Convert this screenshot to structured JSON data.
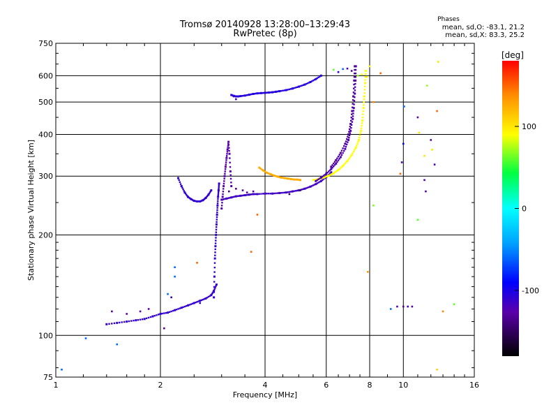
{
  "chart_data": {
    "type": "scatter",
    "title": "Tromsø 20140928 13:28:00–13:29:43",
    "subtitle": "RwPretec (8p)",
    "xlabel": "Frequency [MHz]",
    "ylabel": "Stationary phase Virtual Height [km]",
    "xscale": "log",
    "yscale": "log",
    "xlim": [
      1,
      16
    ],
    "ylim": [
      75,
      750
    ],
    "xticks": [
      1,
      2,
      4,
      6,
      8,
      10,
      16
    ],
    "xtick_labels": [
      "1",
      "2",
      "4",
      "6",
      "8",
      "10",
      "16"
    ],
    "yticks": [
      75,
      100,
      200,
      300,
      400,
      500,
      600,
      750
    ],
    "ytick_labels": [
      "75",
      "100",
      "200",
      "300",
      "400",
      "500",
      "600",
      "750"
    ],
    "grid": true,
    "stats": {
      "heading": "Phases",
      "line_o": "mean, sd,O: -83.1, 21.2",
      "line_x": "mean, sd,X:  83.3, 25.2"
    },
    "colorbar": {
      "label": "[deg]",
      "range": [
        -180,
        180
      ],
      "ticks": [
        100,
        0,
        -100
      ],
      "tick_labels": [
        "100",
        "0",
        "-100"
      ],
      "position": "right"
    },
    "traces": [
      {
        "phase": -110,
        "x": [
          1.4,
          1.5,
          1.6,
          1.7,
          1.8,
          1.9,
          2.0,
          2.1,
          2.2,
          2.3,
          2.4,
          2.5,
          2.6,
          2.7,
          2.8,
          2.85,
          2.9
        ],
        "y": [
          108,
          109,
          110,
          111,
          112,
          114,
          116,
          117,
          119,
          121,
          123,
          125,
          127,
          129,
          132,
          136,
          142
        ]
      },
      {
        "phase": -110,
        "x": [
          2.85,
          2.86,
          2.87,
          2.88,
          2.89,
          2.9,
          2.91,
          2.92,
          2.93,
          2.94,
          2.95
        ],
        "y": [
          130,
          150,
          170,
          185,
          200,
          215,
          230,
          245,
          260,
          272,
          285
        ]
      },
      {
        "phase": -110,
        "x": [
          2.25,
          2.3,
          2.35,
          2.4,
          2.45,
          2.5,
          2.55,
          2.6,
          2.65,
          2.7,
          2.75,
          2.8
        ],
        "y": [
          296,
          280,
          268,
          260,
          256,
          253,
          252,
          252,
          254,
          258,
          264,
          272
        ]
      },
      {
        "phase": -115,
        "x": [
          3.0,
          3.1,
          3.2,
          3.3,
          3.4,
          3.5,
          3.6,
          3.7,
          3.8,
          4.0,
          4.2,
          4.4,
          4.6,
          4.8,
          5.0,
          5.2,
          5.4,
          5.6,
          5.8,
          6.0,
          6.2
        ],
        "y": [
          255,
          257,
          259,
          261,
          262,
          263,
          264,
          265,
          265,
          266,
          266,
          267,
          268,
          270,
          272,
          275,
          279,
          284,
          290,
          298,
          308
        ]
      },
      {
        "phase": -125,
        "x": [
          3.0,
          3.02,
          3.04,
          3.06,
          3.08,
          3.1,
          3.12,
          3.14,
          3.16,
          3.18,
          3.2
        ],
        "y": [
          240,
          260,
          280,
          300,
          320,
          340,
          360,
          380,
          350,
          310,
          280
        ]
      },
      {
        "phase": -105,
        "x": [
          3.2,
          3.25,
          3.3,
          3.35,
          3.4,
          3.5,
          3.6,
          3.7,
          3.8,
          3.9,
          4.0,
          4.1,
          4.2,
          4.3,
          4.4,
          4.6,
          4.8,
          5.0,
          5.2,
          5.4,
          5.6,
          5.8
        ],
        "y": [
          525,
          522,
          520,
          520,
          521,
          523,
          526,
          529,
          531,
          532,
          533,
          534,
          535,
          537,
          539,
          543,
          549,
          556,
          564,
          574,
          586,
          600
        ]
      },
      {
        "phase": 125,
        "x": [
          3.85,
          3.95,
          4.05,
          4.15,
          4.25,
          4.35,
          4.45,
          4.55,
          4.65,
          4.75,
          4.85,
          4.95,
          5.05
        ],
        "y": [
          318,
          312,
          307,
          304,
          301,
          299,
          297,
          296,
          295,
          294,
          293,
          293,
          292
        ]
      },
      {
        "phase": 90,
        "x": [
          5.5,
          5.7,
          5.9,
          6.1,
          6.3,
          6.5,
          6.7,
          6.9,
          7.1,
          7.3,
          7.45,
          7.55,
          7.62,
          7.68,
          7.72,
          7.76,
          7.8
        ],
        "y": [
          292,
          294,
          297,
          301,
          306,
          313,
          322,
          333,
          347,
          365,
          385,
          410,
          440,
          480,
          520,
          570,
          620
        ]
      },
      {
        "phase": -120,
        "x": [
          5.6,
          5.8,
          6.0,
          6.2,
          6.4,
          6.6,
          6.8,
          6.95,
          7.05,
          7.15,
          7.2,
          7.25,
          7.28,
          7.3
        ],
        "y": [
          290,
          297,
          305,
          315,
          327,
          342,
          362,
          385,
          410,
          445,
          480,
          530,
          580,
          640
        ]
      },
      {
        "phase": -132,
        "x": [
          6.2,
          6.4,
          6.6,
          6.8,
          6.95,
          7.05,
          7.12,
          7.18,
          7.22,
          7.25
        ],
        "y": [
          320,
          335,
          352,
          375,
          400,
          430,
          470,
          520,
          580,
          640
        ]
      }
    ],
    "points": [
      {
        "x": 1.04,
        "y": 79,
        "phase": -60
      },
      {
        "x": 1.22,
        "y": 98,
        "phase": -60
      },
      {
        "x": 1.5,
        "y": 94,
        "phase": -60
      },
      {
        "x": 1.45,
        "y": 118,
        "phase": -130
      },
      {
        "x": 1.6,
        "y": 116,
        "phase": -125
      },
      {
        "x": 1.75,
        "y": 118,
        "phase": -125
      },
      {
        "x": 1.85,
        "y": 120,
        "phase": -125
      },
      {
        "x": 2.05,
        "y": 105,
        "phase": -130
      },
      {
        "x": 2.1,
        "y": 133,
        "phase": -60
      },
      {
        "x": 2.15,
        "y": 130,
        "phase": -110
      },
      {
        "x": 2.2,
        "y": 160,
        "phase": -60
      },
      {
        "x": 2.2,
        "y": 150,
        "phase": -60
      },
      {
        "x": 2.6,
        "y": 125,
        "phase": -110
      },
      {
        "x": 2.55,
        "y": 165,
        "phase": 150
      },
      {
        "x": 3.15,
        "y": 270,
        "phase": -135
      },
      {
        "x": 3.3,
        "y": 275,
        "phase": -130
      },
      {
        "x": 3.45,
        "y": 272,
        "phase": -130
      },
      {
        "x": 3.55,
        "y": 268,
        "phase": -125
      },
      {
        "x": 3.7,
        "y": 270,
        "phase": -125
      },
      {
        "x": 3.25,
        "y": 520,
        "phase": -115
      },
      {
        "x": 3.3,
        "y": 510,
        "phase": -115
      },
      {
        "x": 3.8,
        "y": 230,
        "phase": 150
      },
      {
        "x": 3.65,
        "y": 178,
        "phase": 150
      },
      {
        "x": 5.05,
        "y": 272,
        "phase": -150
      },
      {
        "x": 4.7,
        "y": 265,
        "phase": -150
      },
      {
        "x": 6.3,
        "y": 625,
        "phase": 60
      },
      {
        "x": 6.5,
        "y": 615,
        "phase": -100
      },
      {
        "x": 6.7,
        "y": 628,
        "phase": -60
      },
      {
        "x": 6.9,
        "y": 630,
        "phase": -120
      },
      {
        "x": 7.1,
        "y": 620,
        "phase": -130
      },
      {
        "x": 7.4,
        "y": 600,
        "phase": 70
      },
      {
        "x": 7.6,
        "y": 605,
        "phase": 90
      },
      {
        "x": 7.85,
        "y": 595,
        "phase": 95
      },
      {
        "x": 8.0,
        "y": 640,
        "phase": 90
      },
      {
        "x": 8.2,
        "y": 500,
        "phase": 140
      },
      {
        "x": 8.6,
        "y": 610,
        "phase": 150
      },
      {
        "x": 7.9,
        "y": 155,
        "phase": 135
      },
      {
        "x": 8.2,
        "y": 245,
        "phase": 65
      },
      {
        "x": 9.2,
        "y": 120,
        "phase": -60
      },
      {
        "x": 9.6,
        "y": 122,
        "phase": -120
      },
      {
        "x": 10.0,
        "y": 122,
        "phase": -130
      },
      {
        "x": 10.3,
        "y": 122,
        "phase": -120
      },
      {
        "x": 10.6,
        "y": 122,
        "phase": -130
      },
      {
        "x": 9.8,
        "y": 305,
        "phase": 150
      },
      {
        "x": 9.9,
        "y": 330,
        "phase": -120
      },
      {
        "x": 10.0,
        "y": 375,
        "phase": -90
      },
      {
        "x": 10.05,
        "y": 485,
        "phase": -60
      },
      {
        "x": 11.0,
        "y": 450,
        "phase": -130
      },
      {
        "x": 11.1,
        "y": 405,
        "phase": 100
      },
      {
        "x": 11.0,
        "y": 222,
        "phase": 60
      },
      {
        "x": 11.5,
        "y": 292,
        "phase": -120
      },
      {
        "x": 11.6,
        "y": 270,
        "phase": -120
      },
      {
        "x": 11.7,
        "y": 560,
        "phase": 70
      },
      {
        "x": 12.0,
        "y": 385,
        "phase": -130
      },
      {
        "x": 12.1,
        "y": 360,
        "phase": 100
      },
      {
        "x": 12.3,
        "y": 325,
        "phase": -120
      },
      {
        "x": 12.5,
        "y": 470,
        "phase": 150
      },
      {
        "x": 12.6,
        "y": 660,
        "phase": 100
      },
      {
        "x": 13.0,
        "y": 118,
        "phase": 140
      },
      {
        "x": 14.0,
        "y": 124,
        "phase": 60
      },
      {
        "x": 12.5,
        "y": 79,
        "phase": 110
      },
      {
        "x": 11.5,
        "y": 345,
        "phase": 100
      }
    ]
  }
}
